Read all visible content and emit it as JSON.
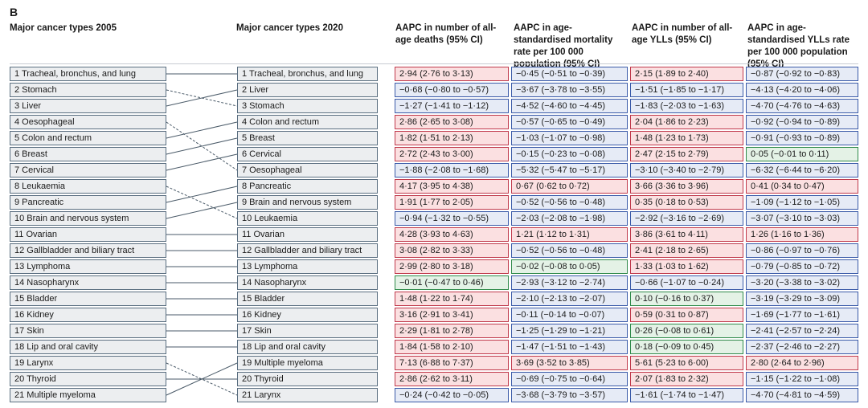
{
  "panel_label": "B",
  "headers": {
    "col_2005": "Major cancer types 2005",
    "col_2020": "Major cancer types 2020",
    "aapc_deaths": "AAPC in number of all-age deaths (95% CI)",
    "aapc_asmr": "AAPC in age-standardised mortality rate per 100 000 population (95% CI)",
    "aapc_ylls": "AAPC in number of all-age YLLs (95% CI)",
    "aapc_yll_rate": "AAPC in age-standardised YLLs rate per 100 000 population (95% CI)"
  },
  "ranks_2005": [
    "1 Tracheal, bronchus, and lung",
    "2 Stomach",
    "3 Liver",
    "4 Oesophageal",
    "5 Colon and rectum",
    "6 Breast",
    "7 Cervical",
    "8 Leukaemia",
    "9 Pancreatic",
    "10 Brain and nervous system",
    "11 Ovarian",
    "12 Gallbladder and biliary tract",
    "13 Lymphoma",
    "14 Nasopharynx",
    "15 Bladder",
    "16 Kidney",
    "17 Skin",
    "18 Lip and oral cavity",
    "19 Larynx",
    "20 Thyroid",
    "21 Multiple myeloma"
  ],
  "ranks_2020": [
    "1 Tracheal, bronchus, and lung",
    "2 Liver",
    "3 Stomach",
    "4 Colon and rectum",
    "5 Breast",
    "6 Cervical",
    "7 Oesophageal",
    "8 Pancreatic",
    "9 Brain and nervous system",
    "10 Leukaemia",
    "11 Ovarian",
    "12 Gallbladder and biliary tract",
    "13 Lymphoma",
    "14 Nasopharynx",
    "15 Bladder",
    "16 Kidney",
    "17 Skin",
    "18 Lip and oral cavity",
    "19 Multiple myeloma",
    "20 Thyroid",
    "21 Larynx"
  ],
  "connectors": [
    {
      "from_rank": 1,
      "to_rank": 1,
      "style": "solid"
    },
    {
      "from_rank": 2,
      "to_rank": 3,
      "style": "dashed"
    },
    {
      "from_rank": 3,
      "to_rank": 2,
      "style": "solid"
    },
    {
      "from_rank": 4,
      "to_rank": 7,
      "style": "dashed"
    },
    {
      "from_rank": 5,
      "to_rank": 4,
      "style": "solid"
    },
    {
      "from_rank": 6,
      "to_rank": 5,
      "style": "solid"
    },
    {
      "from_rank": 7,
      "to_rank": 6,
      "style": "solid"
    },
    {
      "from_rank": 8,
      "to_rank": 10,
      "style": "dashed"
    },
    {
      "from_rank": 9,
      "to_rank": 8,
      "style": "solid"
    },
    {
      "from_rank": 10,
      "to_rank": 9,
      "style": "solid"
    },
    {
      "from_rank": 11,
      "to_rank": 11,
      "style": "solid"
    },
    {
      "from_rank": 12,
      "to_rank": 12,
      "style": "solid"
    },
    {
      "from_rank": 13,
      "to_rank": 13,
      "style": "solid"
    },
    {
      "from_rank": 14,
      "to_rank": 14,
      "style": "solid"
    },
    {
      "from_rank": 15,
      "to_rank": 15,
      "style": "solid"
    },
    {
      "from_rank": 16,
      "to_rank": 16,
      "style": "solid"
    },
    {
      "from_rank": 17,
      "to_rank": 17,
      "style": "solid"
    },
    {
      "from_rank": 18,
      "to_rank": 18,
      "style": "solid"
    },
    {
      "from_rank": 19,
      "to_rank": 21,
      "style": "dashed"
    },
    {
      "from_rank": 20,
      "to_rank": 20,
      "style": "solid"
    },
    {
      "from_rank": 21,
      "to_rank": 19,
      "style": "solid"
    }
  ],
  "colors": {
    "increase_fill": "#fbe0e1",
    "increase_border": "#c0394b",
    "decrease_fill": "#e6ebf6",
    "decrease_border": "#3a5aa8",
    "nonsignificant_fill": "#e4f2e6",
    "nonsignificant_border": "#2f8a4a",
    "connector": "#4a5a68"
  },
  "rows": [
    {
      "deaths": "2·94 (2·76 to 3·13)",
      "deaths_sig": "up",
      "asmr": "−0·45 (−0·51 to −0·39)",
      "asmr_sig": "down",
      "ylls": "2·15 (1·89 to 2·40)",
      "ylls_sig": "up",
      "yllr": "−0·87 (−0·92 to −0·83)",
      "yllr_sig": "down"
    },
    {
      "deaths": "−0·68 (−0·80 to −0·57)",
      "deaths_sig": "down",
      "asmr": "−3·67 (−3·78 to −3·55)",
      "asmr_sig": "down",
      "ylls": "−1·51 (−1·85 to −1·17)",
      "ylls_sig": "down",
      "yllr": "−4·13 (−4·20 to −4·06)",
      "yllr_sig": "down"
    },
    {
      "deaths": "−1·27 (−1·41 to −1·12)",
      "deaths_sig": "down",
      "asmr": "−4·52 (−4·60 to −4·45)",
      "asmr_sig": "down",
      "ylls": "−1·83 (−2·03 to −1·63)",
      "ylls_sig": "down",
      "yllr": "−4·70 (−4·76 to −4·63)",
      "yllr_sig": "down"
    },
    {
      "deaths": "2·86 (2·65 to 3·08)",
      "deaths_sig": "up",
      "asmr": "−0·57 (−0·65 to −0·49)",
      "asmr_sig": "down",
      "ylls": "2·04 (1·86 to 2·23)",
      "ylls_sig": "up",
      "yllr": "−0·92 (−0·94 to −0·89)",
      "yllr_sig": "down"
    },
    {
      "deaths": "1·82 (1·51 to 2·13)",
      "deaths_sig": "up",
      "asmr": "−1·03 (−1·07 to −0·98)",
      "asmr_sig": "down",
      "ylls": "1·48 (1·23 to 1·73)",
      "ylls_sig": "up",
      "yllr": "−0·91 (−0·93 to −0·89)",
      "yllr_sig": "down"
    },
    {
      "deaths": "2·72 (2·43 to 3·00)",
      "deaths_sig": "up",
      "asmr": "−0·15 (−0·23 to −0·08)",
      "asmr_sig": "down",
      "ylls": "2·47 (2·15 to 2·79)",
      "ylls_sig": "up",
      "yllr": "0·05 (−0·01 to 0·11)",
      "yllr_sig": "ns"
    },
    {
      "deaths": "−1·88 (−2·08 to −1·68)",
      "deaths_sig": "down",
      "asmr": "−5·32 (−5·47 to −5·17)",
      "asmr_sig": "down",
      "ylls": "−3·10 (−3·40 to −2·79)",
      "ylls_sig": "down",
      "yllr": "−6·32 (−6·44 to −6·20)",
      "yllr_sig": "down"
    },
    {
      "deaths": "4·17 (3·95 to 4·38)",
      "deaths_sig": "up",
      "asmr": "0·67 (0·62 to 0·72)",
      "asmr_sig": "up",
      "ylls": "3·66 (3·36 to 3·96)",
      "ylls_sig": "up",
      "yllr": "0·41 (0·34 to 0·47)",
      "yllr_sig": "up"
    },
    {
      "deaths": "1·91 (1·77 to 2·05)",
      "deaths_sig": "up",
      "asmr": "−0·52 (−0·56 to −0·48)",
      "asmr_sig": "down",
      "ylls": "0·35 (0·18 to 0·53)",
      "ylls_sig": "up",
      "yllr": "−1·09 (−1·12 to −1·05)",
      "yllr_sig": "down"
    },
    {
      "deaths": "−0·94 (−1·32 to −0·55)",
      "deaths_sig": "down",
      "asmr": "−2·03 (−2·08 to −1·98)",
      "asmr_sig": "down",
      "ylls": "−2·92 (−3·16 to −2·69)",
      "ylls_sig": "down",
      "yllr": "−3·07 (−3·10 to −3·03)",
      "yllr_sig": "down"
    },
    {
      "deaths": "4·28 (3·93 to 4·63)",
      "deaths_sig": "up",
      "asmr": "1·21 (1·12 to 1·31)",
      "asmr_sig": "up",
      "ylls": "3·86 (3·61 to 4·11)",
      "ylls_sig": "up",
      "yllr": "1·26 (1·16 to 1·36)",
      "yllr_sig": "up"
    },
    {
      "deaths": "3·08 (2·82 to 3·33)",
      "deaths_sig": "up",
      "asmr": "−0·52 (−0·56 to −0·48)",
      "asmr_sig": "down",
      "ylls": "2·41 (2·18 to 2·65)",
      "ylls_sig": "up",
      "yllr": "−0·86 (−0·97 to −0·76)",
      "yllr_sig": "down"
    },
    {
      "deaths": "2·99 (2·80 to 3·18)",
      "deaths_sig": "up",
      "asmr": "−0·02 (−0·08 to 0·05)",
      "asmr_sig": "ns",
      "ylls": "1·33 (1·03 to 1·62)",
      "ylls_sig": "up",
      "yllr": "−0·79 (−0·85 to −0·72)",
      "yllr_sig": "down"
    },
    {
      "deaths": "−0·01 (−0·47 to 0·46)",
      "deaths_sig": "ns",
      "asmr": "−2·93 (−3·12 to −2·74)",
      "asmr_sig": "down",
      "ylls": "−0·66 (−1·07 to −0·24)",
      "ylls_sig": "down",
      "yllr": "−3·20 (−3·38 to −3·02)",
      "yllr_sig": "down"
    },
    {
      "deaths": "1·48 (1·22 to 1·74)",
      "deaths_sig": "up",
      "asmr": "−2·10 (−2·13 to −2·07)",
      "asmr_sig": "down",
      "ylls": "0·10 (−0·16 to 0·37)",
      "ylls_sig": "ns",
      "yllr": "−3·19 (−3·29 to −3·09)",
      "yllr_sig": "down"
    },
    {
      "deaths": "3·16 (2·91 to 3·41)",
      "deaths_sig": "up",
      "asmr": "−0·11 (−0·14 to −0·07)",
      "asmr_sig": "down",
      "ylls": "0·59 (0·31 to 0·87)",
      "ylls_sig": "up",
      "yllr": "−1·69 (−1·77 to −1·61)",
      "yllr_sig": "down"
    },
    {
      "deaths": "2·29 (1·81 to 2·78)",
      "deaths_sig": "up",
      "asmr": "−1·25 (−1·29 to −1·21)",
      "asmr_sig": "down",
      "ylls": "0·26 (−0·08 to 0·61)",
      "ylls_sig": "ns",
      "yllr": "−2·41 (−2·57 to −2·24)",
      "yllr_sig": "down"
    },
    {
      "deaths": "1·84 (1·58 to 2·10)",
      "deaths_sig": "up",
      "asmr": "−1·47 (−1·51 to −1·43)",
      "asmr_sig": "down",
      "ylls": "0·18 (−0·09 to 0·45)",
      "ylls_sig": "ns",
      "yllr": "−2·37 (−2·46 to −2·27)",
      "yllr_sig": "down"
    },
    {
      "deaths": "7·13 (6·88 to 7·37)",
      "deaths_sig": "up",
      "asmr": "3·69 (3·52 to 3·85)",
      "asmr_sig": "up",
      "ylls": "5·61 (5·23 to 6·00)",
      "ylls_sig": "up",
      "yllr": "2·80 (2·64 to 2·96)",
      "yllr_sig": "up"
    },
    {
      "deaths": "2·86 (2·62 to 3·11)",
      "deaths_sig": "up",
      "asmr": "−0·69 (−0·75 to −0·64)",
      "asmr_sig": "down",
      "ylls": "2·07 (1·83 to 2·32)",
      "ylls_sig": "up",
      "yllr": "−1·15 (−1·22 to −1·08)",
      "yllr_sig": "down"
    },
    {
      "deaths": "−0·24 (−0·42 to −0·05)",
      "deaths_sig": "down",
      "asmr": "−3·68 (−3·79 to −3·57)",
      "asmr_sig": "down",
      "ylls": "−1·61 (−1·74 to −1·47)",
      "ylls_sig": "down",
      "yllr": "−4·70 (−4·81 to −4·59)",
      "yllr_sig": "down"
    }
  ]
}
